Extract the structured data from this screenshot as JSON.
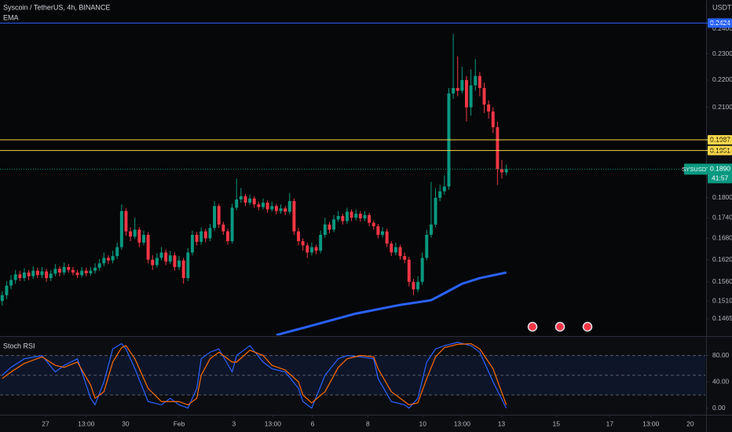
{
  "chart_data": [
    {
      "type": "candlestick",
      "title": "Syscoin / TetherUS, 4h, BINANCE",
      "ylabel": "USDT",
      "log_scale": true,
      "grid": false,
      "up_color": "#089981",
      "down_color": "#f23645",
      "xlim": [
        -0.5,
        159
      ],
      "ylim": [
        0.1426,
        0.2521
      ],
      "yticks": [
        {
          "value": 0.24,
          "label": "0.2400"
        },
        {
          "value": 0.23,
          "label": "0.2300"
        },
        {
          "value": 0.22,
          "label": "0.2200"
        },
        {
          "value": 0.21,
          "label": "0.2100"
        },
        {
          "value": 0.18,
          "label": "0.1800"
        },
        {
          "value": 0.174,
          "label": "0.1740"
        },
        {
          "value": 0.168,
          "label": "0.1680"
        },
        {
          "value": 0.162,
          "label": "0.1620"
        },
        {
          "value": 0.156,
          "label": "0.1560"
        },
        {
          "value": 0.151,
          "label": "0.1510"
        },
        {
          "value": 0.1465,
          "label": "0.1465"
        }
      ],
      "candles": [
        [
          0.151,
          0.1535,
          0.1498,
          0.1525
        ],
        [
          0.1525,
          0.1562,
          0.1515,
          0.155
        ],
        [
          0.155,
          0.1578,
          0.154,
          0.1565
        ],
        [
          0.1565,
          0.1592,
          0.1555,
          0.158
        ],
        [
          0.158,
          0.159,
          0.1562,
          0.157
        ],
        [
          0.157,
          0.1597,
          0.1562,
          0.1585
        ],
        [
          0.1585,
          0.1592,
          0.1565,
          0.1575
        ],
        [
          0.1575,
          0.1602,
          0.1568,
          0.159
        ],
        [
          0.159,
          0.1598,
          0.157,
          0.1578
        ],
        [
          0.1578,
          0.16,
          0.157,
          0.1588
        ],
        [
          0.1588,
          0.1595,
          0.156,
          0.157
        ],
        [
          0.157,
          0.1592,
          0.1562,
          0.1582
        ],
        [
          0.1582,
          0.1608,
          0.1575,
          0.1595
        ],
        [
          0.1595,
          0.1602,
          0.1575,
          0.1585
        ],
        [
          0.1585,
          0.1612,
          0.1578,
          0.16
        ],
        [
          0.16,
          0.1608,
          0.1584,
          0.1592
        ],
        [
          0.1592,
          0.16,
          0.1578,
          0.1585
        ],
        [
          0.1585,
          0.1592,
          0.157,
          0.1578
        ],
        [
          0.1578,
          0.16,
          0.1572,
          0.159
        ],
        [
          0.159,
          0.1598,
          0.1575,
          0.1583
        ],
        [
          0.1583,
          0.16,
          0.1576,
          0.159
        ],
        [
          0.159,
          0.161,
          0.1582,
          0.1598
        ],
        [
          0.1598,
          0.1622,
          0.159,
          0.161
        ],
        [
          0.161,
          0.164,
          0.1602,
          0.1625
        ],
        [
          0.1625,
          0.1632,
          0.1608,
          0.1618
        ],
        [
          0.1618,
          0.1645,
          0.161,
          0.163
        ],
        [
          0.163,
          0.1668,
          0.1622,
          0.1655
        ],
        [
          0.1655,
          0.178,
          0.1648,
          0.176
        ],
        [
          0.176,
          0.1768,
          0.1688,
          0.17
        ],
        [
          0.17,
          0.1712,
          0.1672,
          0.1685
        ],
        [
          0.1685,
          0.174,
          0.1678,
          0.1705
        ],
        [
          0.1705,
          0.1712,
          0.1655,
          0.1668
        ],
        [
          0.1668,
          0.1702,
          0.166,
          0.169
        ],
        [
          0.169,
          0.1698,
          0.161,
          0.162
        ],
        [
          0.162,
          0.1632,
          0.1592,
          0.1605
        ],
        [
          0.1605,
          0.1638,
          0.1598,
          0.1625
        ],
        [
          0.1625,
          0.1655,
          0.1618,
          0.164
        ],
        [
          0.164,
          0.1648,
          0.1605,
          0.1615
        ],
        [
          0.1615,
          0.1645,
          0.1608,
          0.1632
        ],
        [
          0.1632,
          0.164,
          0.159,
          0.16
        ],
        [
          0.16,
          0.163,
          0.1592,
          0.1618
        ],
        [
          0.1618,
          0.1625,
          0.1555,
          0.157
        ],
        [
          0.157,
          0.1652,
          0.1562,
          0.164
        ],
        [
          0.164,
          0.1702,
          0.1632,
          0.169
        ],
        [
          0.169,
          0.1698,
          0.166,
          0.167
        ],
        [
          0.167,
          0.1712,
          0.1662,
          0.17
        ],
        [
          0.17,
          0.1708,
          0.1668,
          0.168
        ],
        [
          0.168,
          0.1722,
          0.1672,
          0.171
        ],
        [
          0.171,
          0.179,
          0.1702,
          0.1775
        ],
        [
          0.1775,
          0.1782,
          0.171,
          0.172
        ],
        [
          0.172,
          0.1728,
          0.169,
          0.17
        ],
        [
          0.17,
          0.1708,
          0.1662,
          0.1672
        ],
        [
          0.1672,
          0.1782,
          0.1665,
          0.177
        ],
        [
          0.177,
          0.186,
          0.1762,
          0.1795
        ],
        [
          0.1795,
          0.183,
          0.1785,
          0.1805
        ],
        [
          0.1805,
          0.1812,
          0.1775,
          0.1785
        ],
        [
          0.1785,
          0.181,
          0.1778,
          0.1798
        ],
        [
          0.1798,
          0.1805,
          0.177,
          0.178
        ],
        [
          0.178,
          0.1788,
          0.1762,
          0.1772
        ],
        [
          0.1772,
          0.1798,
          0.1765,
          0.1785
        ],
        [
          0.1785,
          0.1792,
          0.1755,
          0.1765
        ],
        [
          0.1765,
          0.1788,
          0.1758,
          0.1775
        ],
        [
          0.1775,
          0.1782,
          0.175,
          0.176
        ],
        [
          0.176,
          0.178,
          0.1752,
          0.1768
        ],
        [
          0.1768,
          0.1775,
          0.1748,
          0.1758
        ],
        [
          0.1758,
          0.1815,
          0.175,
          0.179
        ],
        [
          0.179,
          0.1798,
          0.169,
          0.17
        ],
        [
          0.17,
          0.171,
          0.166,
          0.1672
        ],
        [
          0.1672,
          0.168,
          0.1645,
          0.166
        ],
        [
          0.166,
          0.1668,
          0.1625,
          0.164
        ],
        [
          0.164,
          0.1668,
          0.1632,
          0.1655
        ],
        [
          0.1655,
          0.1662,
          0.1635,
          0.1645
        ],
        [
          0.1645,
          0.1702,
          0.1638,
          0.169
        ],
        [
          0.169,
          0.174,
          0.1682,
          0.172
        ],
        [
          0.172,
          0.1728,
          0.1695,
          0.1705
        ],
        [
          0.1705,
          0.1748,
          0.1698,
          0.1735
        ],
        [
          0.1735,
          0.176,
          0.1728,
          0.1745
        ],
        [
          0.1745,
          0.1752,
          0.172,
          0.173
        ],
        [
          0.173,
          0.177,
          0.1722,
          0.1758
        ],
        [
          0.1758,
          0.1765,
          0.173,
          0.174
        ],
        [
          0.174,
          0.1765,
          0.1732,
          0.1752
        ],
        [
          0.1752,
          0.176,
          0.1728,
          0.1738
        ],
        [
          0.1738,
          0.176,
          0.173,
          0.1748
        ],
        [
          0.1748,
          0.1755,
          0.1715,
          0.1725
        ],
        [
          0.1725,
          0.1732,
          0.1705,
          0.1715
        ],
        [
          0.1715,
          0.1722,
          0.168,
          0.169
        ],
        [
          0.169,
          0.1712,
          0.1682,
          0.17
        ],
        [
          0.17,
          0.1708,
          0.1655,
          0.1665
        ],
        [
          0.1665,
          0.1672,
          0.163,
          0.164
        ],
        [
          0.164,
          0.1668,
          0.1632,
          0.1655
        ],
        [
          0.1655,
          0.1662,
          0.162,
          0.163
        ],
        [
          0.163,
          0.164,
          0.161,
          0.162
        ],
        [
          0.162,
          0.1628,
          0.1548,
          0.156
        ],
        [
          0.156,
          0.1568,
          0.1525,
          0.154
        ],
        [
          0.154,
          0.1575,
          0.1532,
          0.156
        ],
        [
          0.156,
          0.164,
          0.1552,
          0.1625
        ],
        [
          0.1625,
          0.1705,
          0.1618,
          0.169
        ],
        [
          0.169,
          0.185,
          0.1682,
          0.172
        ],
        [
          0.172,
          0.183,
          0.1712,
          0.18
        ],
        [
          0.18,
          0.184,
          0.179,
          0.182
        ],
        [
          0.182,
          0.187,
          0.181,
          0.1835
        ],
        [
          0.1835,
          0.217,
          0.1825,
          0.215
        ],
        [
          0.215,
          0.238,
          0.213,
          0.217
        ],
        [
          0.217,
          0.229,
          0.214,
          0.216
        ],
        [
          0.216,
          0.225,
          0.215,
          0.22
        ],
        [
          0.22,
          0.2215,
          0.205,
          0.21
        ],
        [
          0.21,
          0.224,
          0.207,
          0.218
        ],
        [
          0.218,
          0.228,
          0.216,
          0.2215
        ],
        [
          0.2215,
          0.223,
          0.214,
          0.217
        ],
        [
          0.217,
          0.219,
          0.208,
          0.211
        ],
        [
          0.211,
          0.2125,
          0.206,
          0.2085
        ],
        [
          0.2085,
          0.21,
          0.201,
          0.203
        ],
        [
          0.203,
          0.205,
          0.184,
          0.189
        ],
        [
          0.189,
          0.192,
          0.186,
          0.188
        ],
        [
          0.188,
          0.1905,
          0.187,
          0.189
        ]
      ],
      "series": [
        {
          "name": "EMA",
          "color": "#2962ff",
          "x": [
            62,
            70,
            80,
            90,
            93,
            97,
            100,
            104,
            108,
            114
          ],
          "values": [
            0.1425,
            0.1448,
            0.1478,
            0.15,
            0.1505,
            0.1512,
            0.153,
            0.1555,
            0.157,
            0.1585
          ]
        }
      ],
      "levels": [
        {
          "value": 0.2424,
          "label": "0.2424",
          "color": "#2962ff",
          "text_color": "#ffffff"
        },
        {
          "value": 0.1987,
          "label": "0.1987",
          "color": "#f5d54a",
          "text_color": "#000000"
        },
        {
          "value": 0.1951,
          "label": "0.1951",
          "color": "#f5d54a",
          "text_color": "#000000"
        }
      ],
      "last_price": {
        "symbol": "SYSUSDT",
        "value": 0.189,
        "label": "0.1890",
        "countdown": "41:57",
        "color": "#089981"
      }
    },
    {
      "type": "line",
      "title": "Stoch RSI",
      "xlim": [
        -0.5,
        159
      ],
      "ylim": [
        -10,
        107
      ],
      "yticks": [
        {
          "value": 80,
          "label": "80.00"
        },
        {
          "value": 40,
          "label": "40.00"
        },
        {
          "value": 0,
          "label": "0.00"
        }
      ],
      "bands": [
        80,
        50,
        20
      ],
      "band_color": "rgba(41,98,255,0.10)",
      "xticks": [
        {
          "value": 9.8,
          "label": "27"
        },
        {
          "value": 19,
          "label": "13:00"
        },
        {
          "value": 27.9,
          "label": "30"
        },
        {
          "value": 40,
          "label": "Feb"
        },
        {
          "value": 52.4,
          "label": "3"
        },
        {
          "value": 61.2,
          "label": "13:00"
        },
        {
          "value": 70.2,
          "label": "6"
        },
        {
          "value": 82.7,
          "label": "8"
        },
        {
          "value": 95.1,
          "label": "10"
        },
        {
          "value": 104,
          "label": "13:00"
        },
        {
          "value": 112.9,
          "label": "13"
        },
        {
          "value": 125.3,
          "label": "15"
        },
        {
          "value": 137.4,
          "label": "17"
        },
        {
          "value": 146.7,
          "label": "13:00"
        },
        {
          "value": 155.6,
          "label": "20"
        }
      ],
      "series": [
        {
          "color": "#2962ff",
          "x": [
            0,
            2,
            5,
            9,
            12,
            14,
            17,
            20,
            21,
            23,
            25,
            27,
            28,
            30,
            33,
            36,
            38,
            40,
            42,
            44,
            45,
            47,
            49,
            52,
            53,
            56,
            59,
            61,
            64,
            67,
            68,
            70,
            73,
            76,
            78,
            81,
            84,
            85,
            88,
            91,
            92,
            94,
            96,
            98,
            100,
            103,
            106,
            108,
            111,
            114
          ],
          "values": [
            50,
            62,
            75,
            80,
            55,
            65,
            75,
            15,
            5,
            40,
            90,
            98,
            90,
            60,
            10,
            5,
            15,
            5,
            0,
            30,
            75,
            85,
            90,
            55,
            80,
            95,
            70,
            60,
            55,
            30,
            10,
            0,
            50,
            75,
            80,
            78,
            75,
            45,
            10,
            5,
            0,
            15,
            70,
            90,
            95,
            100,
            95,
            85,
            40,
            0
          ]
        },
        {
          "color": "#ff6d00",
          "x": [
            0,
            2,
            5,
            9,
            12,
            14,
            17,
            20,
            21,
            23,
            25,
            27,
            28,
            30,
            33,
            36,
            38,
            40,
            42,
            44,
            45,
            47,
            49,
            52,
            53,
            56,
            59,
            61,
            64,
            67,
            68,
            70,
            73,
            76,
            78,
            81,
            84,
            85,
            88,
            91,
            92,
            94,
            96,
            98,
            100,
            103,
            106,
            108,
            111,
            114
          ],
          "values": [
            45,
            55,
            68,
            78,
            65,
            62,
            70,
            35,
            15,
            25,
            70,
            92,
            95,
            75,
            30,
            10,
            10,
            10,
            5,
            15,
            50,
            75,
            85,
            70,
            70,
            88,
            80,
            65,
            58,
            40,
            20,
            8,
            25,
            62,
            75,
            80,
            78,
            60,
            25,
            10,
            5,
            8,
            45,
            78,
            92,
            97,
            98,
            90,
            60,
            5
          ]
        }
      ]
    }
  ]
}
